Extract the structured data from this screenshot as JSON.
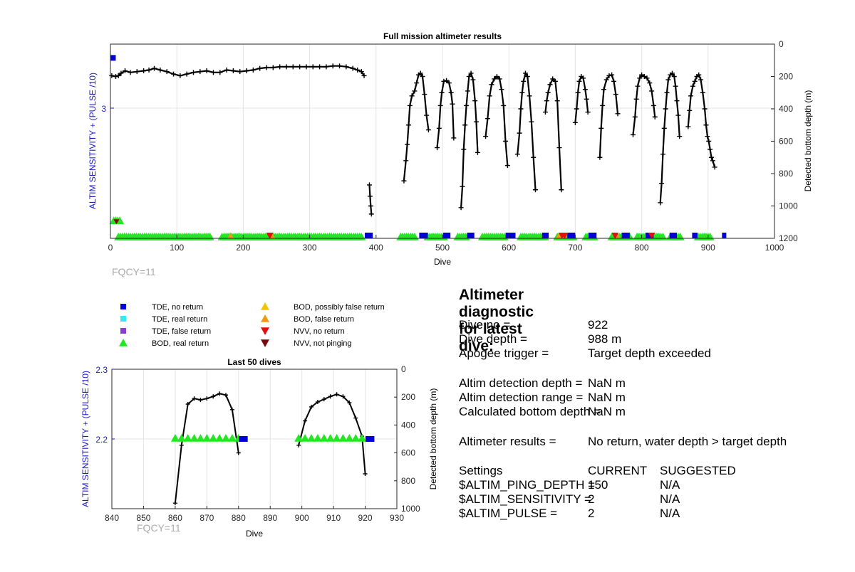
{
  "chart_data": [
    {
      "type": "scatter",
      "title": "Full mission altimeter results",
      "xlabel": "Dive",
      "ylabel_left": "ALTIM SENSITIVITY + (PULSE /10)",
      "ylabel_right": "Detected bottom depth (m)",
      "xlim": [
        0,
        1000
      ],
      "xticks": [
        0,
        100,
        200,
        300,
        400,
        500,
        600,
        700,
        800,
        900,
        1000
      ],
      "ylim_right": [
        0,
        1200
      ],
      "yticks_right": [
        0,
        200,
        400,
        600,
        800,
        1000,
        1200
      ],
      "yticks_left": [
        3
      ],
      "annotation": "FQCY=11",
      "depth_series": [
        [
          [
            2,
            195
          ],
          [
            8,
            200
          ],
          [
            12,
            195
          ],
          [
            16,
            180
          ],
          [
            22,
            165
          ],
          [
            30,
            175
          ],
          [
            40,
            170
          ],
          [
            50,
            165
          ],
          [
            58,
            160
          ],
          [
            66,
            150
          ],
          [
            75,
            160
          ],
          [
            85,
            170
          ],
          [
            95,
            185
          ],
          [
            105,
            195
          ],
          [
            115,
            185
          ],
          [
            125,
            175
          ],
          [
            135,
            170
          ],
          [
            145,
            165
          ],
          [
            155,
            175
          ],
          [
            165,
            175
          ],
          [
            175,
            160
          ],
          [
            185,
            165
          ],
          [
            195,
            170
          ],
          [
            205,
            165
          ],
          [
            215,
            160
          ],
          [
            225,
            150
          ],
          [
            235,
            145
          ],
          [
            245,
            145
          ],
          [
            255,
            140
          ],
          [
            265,
            140
          ],
          [
            275,
            140
          ],
          [
            285,
            140
          ],
          [
            295,
            140
          ],
          [
            305,
            140
          ],
          [
            315,
            140
          ],
          [
            325,
            140
          ],
          [
            335,
            135
          ],
          [
            345,
            135
          ],
          [
            355,
            140
          ],
          [
            365,
            150
          ],
          [
            372,
            160
          ],
          [
            378,
            170
          ],
          [
            382,
            195
          ]
        ],
        [
          [
            390,
            870
          ],
          [
            391,
            940
          ],
          [
            392,
            1000
          ],
          [
            393,
            1050
          ]
        ],
        [
          [
            442,
            845
          ],
          [
            445,
            720
          ],
          [
            447,
            620
          ],
          [
            449,
            500
          ],
          [
            451,
            380
          ],
          [
            454,
            320
          ],
          [
            458,
            290
          ],
          [
            461,
            240
          ],
          [
            464,
            190
          ],
          [
            467,
            180
          ],
          [
            470,
            200
          ],
          [
            473,
            310
          ],
          [
            476,
            440
          ],
          [
            479,
            530
          ]
        ],
        [
          [
            492,
            640
          ],
          [
            495,
            520
          ],
          [
            497,
            380
          ],
          [
            499,
            300
          ],
          [
            502,
            230
          ],
          [
            506,
            225
          ],
          [
            510,
            240
          ],
          [
            513,
            300
          ],
          [
            515,
            370
          ],
          [
            517,
            580
          ]
        ],
        [
          [
            528,
            1010
          ],
          [
            530,
            880
          ],
          [
            532,
            650
          ],
          [
            534,
            500
          ],
          [
            536,
            380
          ],
          [
            538,
            290
          ],
          [
            540,
            200
          ],
          [
            543,
            180
          ],
          [
            546,
            220
          ],
          [
            549,
            350
          ],
          [
            551,
            480
          ],
          [
            553,
            670
          ]
        ],
        [
          [
            565,
            570
          ],
          [
            568,
            460
          ],
          [
            571,
            320
          ],
          [
            574,
            250
          ],
          [
            578,
            215
          ],
          [
            582,
            200
          ],
          [
            586,
            215
          ],
          [
            589,
            280
          ],
          [
            592,
            380
          ],
          [
            595,
            600
          ],
          [
            598,
            750
          ]
        ],
        [
          [
            613,
            680
          ],
          [
            616,
            550
          ],
          [
            618,
            400
          ],
          [
            620,
            300
          ],
          [
            622,
            230
          ],
          [
            625,
            180
          ],
          [
            628,
            200
          ],
          [
            631,
            320
          ],
          [
            634,
            480
          ],
          [
            637,
            700
          ],
          [
            640,
            900
          ]
        ],
        [
          [
            655,
            420
          ],
          [
            657,
            350
          ],
          [
            659,
            300
          ],
          [
            662,
            250
          ],
          [
            666,
            215
          ],
          [
            670,
            230
          ],
          [
            673,
            350
          ],
          [
            676,
            640
          ],
          [
            679,
            900
          ]
        ],
        [
          [
            700,
            485
          ],
          [
            702,
            400
          ],
          [
            704,
            300
          ],
          [
            706,
            230
          ],
          [
            709,
            200
          ],
          [
            712,
            210
          ],
          [
            715,
            280
          ],
          [
            717,
            340
          ],
          [
            719,
            420
          ]
        ],
        [
          [
            737,
            700
          ],
          [
            739,
            520
          ],
          [
            741,
            380
          ],
          [
            743,
            280
          ],
          [
            747,
            220
          ],
          [
            751,
            195
          ],
          [
            755,
            190
          ],
          [
            758,
            230
          ],
          [
            761,
            310
          ],
          [
            764,
            430
          ]
        ],
        [
          [
            787,
            560
          ],
          [
            790,
            450
          ],
          [
            792,
            340
          ],
          [
            794,
            260
          ],
          [
            797,
            210
          ],
          [
            800,
            190
          ],
          [
            804,
            200
          ],
          [
            808,
            210
          ],
          [
            812,
            240
          ],
          [
            815,
            290
          ],
          [
            818,
            380
          ],
          [
            820,
            450
          ]
        ],
        [
          [
            828,
            980
          ],
          [
            830,
            860
          ],
          [
            832,
            680
          ],
          [
            834,
            520
          ],
          [
            836,
            400
          ],
          [
            838,
            300
          ],
          [
            840,
            220
          ],
          [
            843,
            190
          ],
          [
            846,
            180
          ],
          [
            849,
            200
          ],
          [
            851,
            260
          ],
          [
            853,
            350
          ],
          [
            855,
            440
          ],
          [
            857,
            570
          ]
        ],
        [
          [
            870,
            510
          ],
          [
            872,
            410
          ],
          [
            874,
            320
          ],
          [
            877,
            260
          ],
          [
            880,
            230
          ],
          [
            883,
            200
          ],
          [
            886,
            190
          ],
          [
            889,
            220
          ],
          [
            892,
            300
          ],
          [
            895,
            400
          ],
          [
            897,
            500
          ],
          [
            899,
            570
          ],
          [
            901,
            600
          ],
          [
            903,
            650
          ],
          [
            905,
            700
          ],
          [
            907,
            720
          ],
          [
            910,
            760
          ]
        ]
      ],
      "tde_no_return_runs": [
        [
          0,
          8,
          85
        ],
        [
          383,
          395,
          1200
        ],
        [
          465,
          478,
          1200
        ],
        [
          501,
          512,
          1200
        ],
        [
          537,
          548,
          1200
        ],
        [
          595,
          610,
          1200
        ],
        [
          650,
          660,
          1200
        ],
        [
          688,
          700,
          1200
        ],
        [
          720,
          732,
          1200
        ],
        [
          770,
          782,
          1200
        ],
        [
          806,
          818,
          1200
        ],
        [
          842,
          853,
          1200
        ],
        [
          876,
          884,
          1200
        ],
        [
          921,
          925,
          1200
        ]
      ],
      "bod_real_runs": [
        [
          12,
          152,
          1200
        ],
        [
          168,
          378,
          1200
        ],
        [
          437,
          458,
          1200
        ],
        [
          478,
          502,
          1200
        ],
        [
          523,
          537,
          1200
        ],
        [
          560,
          595,
          1200
        ],
        [
          618,
          655,
          1200
        ],
        [
          673,
          697,
          1200
        ],
        [
          716,
          728,
          1200
        ],
        [
          755,
          782,
          1200
        ],
        [
          793,
          833,
          1200
        ],
        [
          843,
          860,
          1200
        ],
        [
          885,
          905,
          1200
        ]
      ],
      "bod_real_points": [
        [
          5,
          1100
        ],
        [
          8,
          1100
        ],
        [
          11,
          1100
        ],
        [
          14,
          1100
        ]
      ],
      "bod_false_points": [
        [
          181,
          1200
        ],
        [
          243,
          1200
        ],
        [
          675,
          1200
        ],
        [
          683,
          1200
        ],
        [
          763,
          1200
        ]
      ],
      "nvv_no_return_points": [
        [
          240,
          1200
        ],
        [
          680,
          1200
        ],
        [
          684,
          1200
        ],
        [
          760,
          1200
        ],
        [
          815,
          1200
        ]
      ],
      "nvv_not_pinging_points": [
        [
          9,
          1105
        ]
      ]
    },
    {
      "type": "scatter",
      "title": "Last 50 dives",
      "xlabel": "Dive",
      "ylabel_left": "ALTIM SENSITIVITY + (PULSE /10)",
      "ylabel_right": "Detected bottom depth (m)",
      "xlim": [
        840,
        930
      ],
      "xticks": [
        840,
        850,
        860,
        870,
        880,
        890,
        900,
        910,
        920,
        930
      ],
      "ylim_left": [
        2.1,
        2.3
      ],
      "yticks_left": [
        "2.2",
        "2.3"
      ],
      "ylim_right": [
        0,
        1000
      ],
      "yticks_right": [
        0,
        200,
        400,
        600,
        800,
        1000
      ],
      "annotation": "FQCY=11",
      "depth_series": [
        [
          [
            860,
            960
          ],
          [
            862,
            545
          ],
          [
            864,
            250
          ],
          [
            866,
            210
          ],
          [
            868,
            220
          ],
          [
            870,
            210
          ],
          [
            872,
            195
          ],
          [
            874,
            175
          ],
          [
            876,
            185
          ],
          [
            878,
            290
          ],
          [
            880,
            600
          ]
        ],
        [
          [
            899,
            545
          ],
          [
            901,
            370
          ],
          [
            903,
            270
          ],
          [
            905,
            235
          ],
          [
            907,
            215
          ],
          [
            909,
            195
          ],
          [
            911,
            180
          ],
          [
            913,
            195
          ],
          [
            915,
            240
          ],
          [
            917,
            350
          ],
          [
            919,
            480
          ],
          [
            920,
            750
          ]
        ]
      ],
      "bod_real_x": [
        860,
        862,
        864,
        866,
        868,
        870,
        872,
        874,
        876,
        878,
        880,
        899,
        901,
        903,
        905,
        907,
        909,
        911,
        913,
        915,
        917,
        919
      ],
      "tde_no_return_x": [
        881,
        882,
        921,
        922
      ]
    }
  ],
  "legend": [
    {
      "label": "TDE, no return",
      "color": "#0000d6",
      "marker": "square"
    },
    {
      "label": "TDE, real return",
      "color": "#33e8f2",
      "marker": "square"
    },
    {
      "label": "TDE, false return",
      "color": "#8a3fd1",
      "marker": "square"
    },
    {
      "label": "BOD, real return",
      "color": "#22e822",
      "marker": "triangle-up"
    },
    {
      "label": "BOD, possibly false return",
      "color": "#f5c400",
      "marker": "triangle-up"
    },
    {
      "label": "BOD, false return",
      "color": "#f09a10",
      "marker": "triangle-up"
    },
    {
      "label": "NVV, no return",
      "color": "#e01010",
      "marker": "triangle-down"
    },
    {
      "label": "NVV, not pinging",
      "color": "#7a0a0a",
      "marker": "triangle-down"
    }
  ],
  "diagnostic": {
    "title": "Altimeter diagnostic for latest dive:",
    "rows": [
      {
        "k": "Dive no =",
        "v": "922"
      },
      {
        "k": "Dive depth =",
        "v": "988 m"
      },
      {
        "k": "Apogee trigger =",
        "v": "Target depth exceeded"
      },
      {
        "k": "Altim detection depth =",
        "v": "NaN m"
      },
      {
        "k": "Altim detection range =",
        "v": "NaN m"
      },
      {
        "k": "Calculated bottom depth =",
        "v": "NaN m"
      },
      {
        "k": "Altimeter results =",
        "v": "No return, water depth > target depth"
      }
    ],
    "settings_header": {
      "k": "Settings",
      "v": "CURRENT",
      "s": "SUGGESTED"
    },
    "settings": [
      {
        "k": "$ALTIM_PING_DEPTH =",
        "v": "150",
        "s": "N/A"
      },
      {
        "k": "$ALTIM_SENSITIVITY =",
        "v": "2",
        "s": "N/A"
      },
      {
        "k": "$ALTIM_PULSE =",
        "v": "2",
        "s": "N/A"
      }
    ]
  },
  "colors": {
    "blue_axis": "#1a1acc",
    "grid": "#e4e4e4",
    "bod_real": "#22e822",
    "tde_no_return": "#0000d6",
    "line": "#000000",
    "fqcy": "#aaaaaa"
  }
}
